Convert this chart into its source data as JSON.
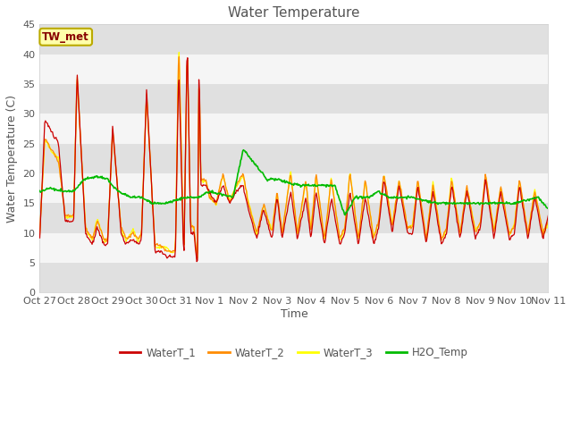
{
  "title": "Water Temperature",
  "ylabel": "Water Temperature (C)",
  "xlabel": "Time",
  "ylim": [
    0,
    45
  ],
  "yticks": [
    0,
    5,
    10,
    15,
    20,
    25,
    30,
    35,
    40,
    45
  ],
  "colors": {
    "WaterT_1": "#CC0000",
    "WaterT_2": "#FF8C00",
    "WaterT_3": "#FFFF00",
    "H2O_Temp": "#00BB00"
  },
  "annotation_text": "TW_met",
  "annotation_color": "#880000",
  "annotation_bg": "#FFFFAA",
  "annotation_border": "#BBAA00",
  "bg_color": "#FFFFFF",
  "plot_bg_color": "#F0F0F0",
  "band_color_dark": "#E0E0E0",
  "band_color_light": "#F5F5F5",
  "line_width": 0.9,
  "title_fontsize": 11,
  "label_fontsize": 9,
  "tick_fontsize": 8,
  "tick_labels": [
    "Oct 27",
    "Oct 28",
    "Oct 29",
    "Oct 30",
    "Oct 31",
    "Nov 1",
    "Nov 2",
    "Nov 3",
    "Nov 4",
    "Nov 5",
    "Nov 6",
    "Nov 7",
    "Nov 8",
    "Nov 9",
    "Nov 10",
    "Nov 11"
  ]
}
